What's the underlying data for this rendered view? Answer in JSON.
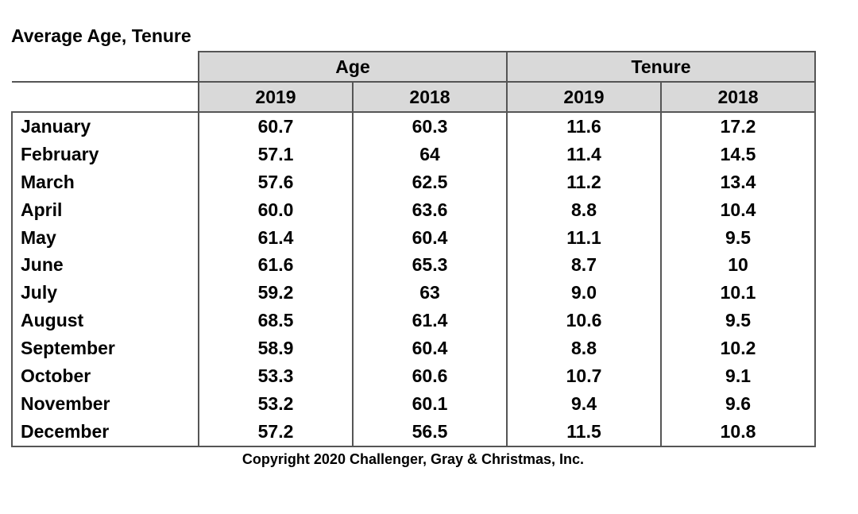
{
  "title": "Average Age, Tenure",
  "groups": {
    "age": "Age",
    "tenure": "Tenure"
  },
  "years": [
    "2019",
    "2018",
    "2019",
    "2018"
  ],
  "rows": [
    {
      "month": "January",
      "values": [
        "60.7",
        "60.3",
        "11.6",
        "17.2"
      ]
    },
    {
      "month": "February",
      "values": [
        "57.1",
        "64",
        "11.4",
        "14.5"
      ]
    },
    {
      "month": "March",
      "values": [
        "57.6",
        "62.5",
        "11.2",
        "13.4"
      ]
    },
    {
      "month": "April",
      "values": [
        "60.0",
        "63.6",
        "8.8",
        "10.4"
      ]
    },
    {
      "month": "May",
      "values": [
        "61.4",
        "60.4",
        "11.1",
        "9.5"
      ]
    },
    {
      "month": "June",
      "values": [
        "61.6",
        "65.3",
        "8.7",
        "10"
      ]
    },
    {
      "month": "July",
      "values": [
        "59.2",
        "63",
        "9.0",
        "10.1"
      ]
    },
    {
      "month": "August",
      "values": [
        "68.5",
        "61.4",
        "10.6",
        "9.5"
      ]
    },
    {
      "month": "September",
      "values": [
        "58.9",
        "60.4",
        "8.8",
        "10.2"
      ]
    },
    {
      "month": "October",
      "values": [
        "53.3",
        "60.6",
        "10.7",
        "9.1"
      ]
    },
    {
      "month": "November",
      "values": [
        "53.2",
        "60.1",
        "9.4",
        "9.6"
      ]
    },
    {
      "month": "December",
      "values": [
        "57.2",
        "56.5",
        "11.5",
        "10.8"
      ]
    }
  ],
  "copyright": "Copyright 2020 Challenger, Gray & Christmas, Inc.",
  "colors": {
    "header_fill": "#d9d9d9",
    "border": "#555555"
  }
}
